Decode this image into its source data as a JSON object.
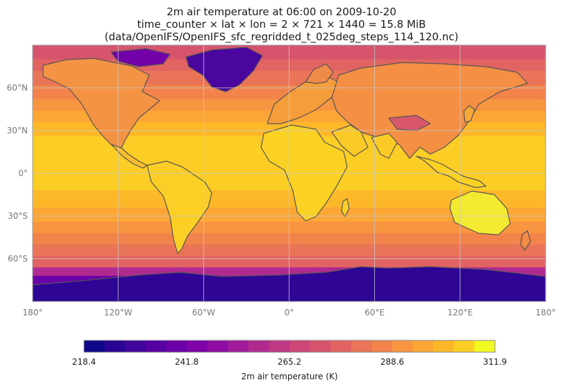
{
  "figure": {
    "title_lines": [
      "2m air temperature at 06:00 on 2009-10-20",
      "time_counter × lat × lon = 2 × 721 × 1440 = 15.8 MiB",
      "(data/OpenIFS/OpenIFS_sfc_regridded_t_025deg_steps_114_120.nc)"
    ]
  },
  "map": {
    "projection": "equirectangular",
    "lon_range": [
      -180,
      180
    ],
    "lat_range": [
      -90,
      90
    ],
    "x_ticks": [
      "180°",
      "120°W",
      "60°W",
      "0°",
      "60°E",
      "120°E",
      "180°"
    ],
    "y_ticks": [
      "60°N",
      "30°N",
      "0°",
      "30°S",
      "60°S"
    ],
    "grid": true,
    "coastline_color": "#555555"
  },
  "colorbar": {
    "label": "2m air temperature (K)",
    "ticks": [
      "218.4",
      "241.8",
      "265.2",
      "288.6",
      "311.9"
    ],
    "vmin": 218.4,
    "vmax": 311.9,
    "colormap": "plasma",
    "levels": 20
  }
}
